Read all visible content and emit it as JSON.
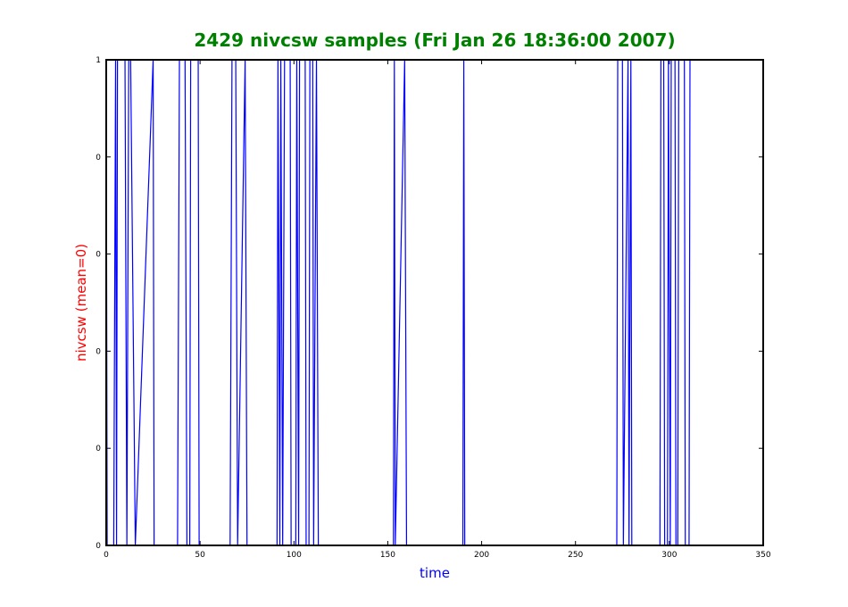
{
  "chart_data": {
    "type": "line",
    "title": "2429 nivcsw samples (Fri Jan 26 18:36:00 2007)",
    "xlabel": "time",
    "ylabel": "nivcsw (mean=0)",
    "xlim": [
      0,
      350
    ],
    "ylim": [
      0,
      1
    ],
    "xticks": [
      0,
      50,
      100,
      150,
      200,
      250,
      300,
      350
    ],
    "xtick_labels": [
      "0",
      "50",
      "100",
      "150",
      "200",
      "250",
      "300",
      "350"
    ],
    "yticks": [
      0,
      0.2,
      0.4,
      0.6,
      0.8,
      1.0
    ],
    "ytick_labels": [
      "0",
      "0",
      "0",
      "0",
      "0",
      "1"
    ],
    "grid": false,
    "colors": {
      "title": "#008000",
      "xlabel": "#0000ff",
      "ylabel": "#ff0000",
      "line": "#0000ff",
      "axes": "#000000"
    },
    "series": [
      {
        "x": [
          0,
          0.5,
          4,
          5,
          5.5,
          6,
          10,
          11,
          12,
          13,
          15.5,
          25,
          25.5,
          38,
          39,
          42,
          43,
          44.5,
          45,
          49,
          49.5,
          66,
          67,
          69,
          70,
          74,
          75,
          91,
          91.5,
          92.5,
          93,
          94,
          95,
          98,
          98.5,
          101,
          101.5,
          102.5,
          103,
          106,
          106.5,
          108,
          108.5,
          110,
          110.5,
          112,
          113,
          153,
          153.5,
          154,
          159,
          160,
          190,
          190.5,
          191,
          272,
          272.5,
          275,
          275.5,
          278,
          278.5,
          279.5,
          280,
          295,
          295.5,
          297,
          297.5,
          299,
          299.5,
          300.5,
          301,
          303,
          303.5,
          304.5,
          305,
          308,
          308.5,
          310.5,
          311
        ],
        "y": [
          1,
          0,
          0,
          1,
          0,
          1,
          1,
          0,
          1,
          1,
          0,
          1,
          0,
          0,
          1,
          1,
          0,
          0,
          1,
          1,
          0,
          0,
          1,
          1,
          0,
          1,
          0,
          0,
          1,
          0,
          1,
          0,
          1,
          1,
          0,
          0,
          1,
          0,
          1,
          1,
          0,
          0,
          1,
          1,
          0,
          1,
          0,
          0,
          1,
          0,
          1,
          0,
          0,
          1,
          0,
          0,
          1,
          1,
          0,
          1,
          0,
          1,
          0,
          0,
          1,
          1,
          0,
          0,
          1,
          0,
          1,
          1,
          0,
          0,
          1,
          1,
          0,
          0,
          1
        ]
      }
    ]
  }
}
